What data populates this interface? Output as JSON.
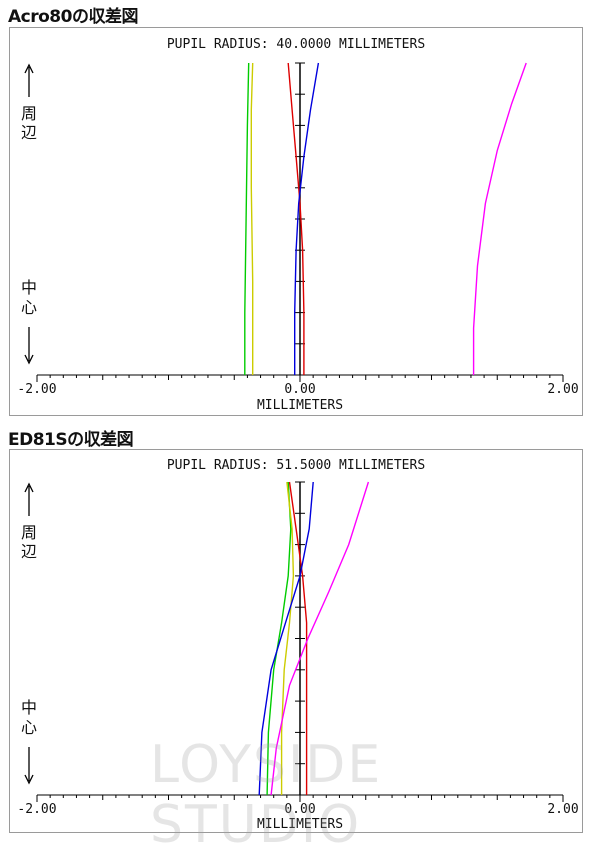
{
  "charts": [
    {
      "section_title": "Acro80の収差図",
      "chart_data": {
        "type": "line",
        "title": "PUPIL RADIUS: 40.0000 MILLIMETERS",
        "xlabel": "MILLIMETERS",
        "xlim": [
          -2.0,
          2.0
        ],
        "ylim": [
          0,
          1
        ],
        "x_tick_labels": [
          "-2.00",
          "0.00",
          "2.00"
        ],
        "y_label_top": "周辺",
        "y_label_bottom": "中心",
        "grid": false,
        "series": [
          {
            "color": "#00cc00",
            "points": [
              [
                -0.42,
                0
              ],
              [
                -0.42,
                0.2
              ],
              [
                -0.41,
                0.5
              ],
              [
                -0.4,
                0.8
              ],
              [
                -0.39,
                1
              ]
            ]
          },
          {
            "color": "#cccc00",
            "points": [
              [
                -0.36,
                0
              ],
              [
                -0.36,
                0.3
              ],
              [
                -0.37,
                0.6
              ],
              [
                -0.37,
                0.85
              ],
              [
                -0.36,
                1
              ]
            ]
          },
          {
            "color": "#dd0000",
            "points": [
              [
                0.03,
                0
              ],
              [
                0.03,
                0.2
              ],
              [
                0.02,
                0.4
              ],
              [
                0.0,
                0.55
              ],
              [
                -0.03,
                0.7
              ],
              [
                -0.06,
                0.85
              ],
              [
                -0.09,
                1
              ]
            ]
          },
          {
            "color": "#0000dd",
            "points": [
              [
                -0.04,
                0
              ],
              [
                -0.04,
                0.2
              ],
              [
                -0.03,
                0.4
              ],
              [
                -0.01,
                0.55
              ],
              [
                0.03,
                0.7
              ],
              [
                0.08,
                0.85
              ],
              [
                0.14,
                1
              ]
            ]
          },
          {
            "color": "#ff00ff",
            "points": [
              [
                1.32,
                0
              ],
              [
                1.32,
                0.15
              ],
              [
                1.35,
                0.35
              ],
              [
                1.41,
                0.55
              ],
              [
                1.5,
                0.72
              ],
              [
                1.61,
                0.87
              ],
              [
                1.72,
                1
              ]
            ]
          }
        ]
      }
    },
    {
      "section_title": "ED81Sの収差図",
      "chart_data": {
        "type": "line",
        "title": "PUPIL RADIUS: 51.5000 MILLIMETERS",
        "xlabel": "MILLIMETERS",
        "xlim": [
          -2.0,
          2.0
        ],
        "ylim": [
          0,
          1
        ],
        "x_tick_labels": [
          "-2.00",
          "0.00",
          "2.00"
        ],
        "y_label_top": "周辺",
        "y_label_bottom": "中心",
        "grid": false,
        "series": [
          {
            "color": "#00cc00",
            "points": [
              [
                -0.25,
                0
              ],
              [
                -0.24,
                0.2
              ],
              [
                -0.2,
                0.4
              ],
              [
                -0.14,
                0.55
              ],
              [
                -0.09,
                0.7
              ],
              [
                -0.07,
                0.85
              ],
              [
                -0.09,
                1
              ]
            ]
          },
          {
            "color": "#cccc00",
            "points": [
              [
                -0.14,
                0
              ],
              [
                -0.14,
                0.2
              ],
              [
                -0.12,
                0.4
              ],
              [
                -0.08,
                0.55
              ],
              [
                -0.05,
                0.7
              ],
              [
                -0.06,
                0.85
              ],
              [
                -0.1,
                1
              ]
            ]
          },
          {
            "color": "#dd0000",
            "points": [
              [
                0.05,
                0
              ],
              [
                0.05,
                0.2
              ],
              [
                0.05,
                0.4
              ],
              [
                0.05,
                0.55
              ],
              [
                0.02,
                0.7
              ],
              [
                -0.03,
                0.85
              ],
              [
                -0.08,
                1
              ]
            ]
          },
          {
            "color": "#0000dd",
            "points": [
              [
                -0.31,
                0
              ],
              [
                -0.29,
                0.2
              ],
              [
                -0.22,
                0.4
              ],
              [
                -0.11,
                0.55
              ],
              [
                0.0,
                0.7
              ],
              [
                0.07,
                0.85
              ],
              [
                0.1,
                1
              ]
            ]
          },
          {
            "color": "#ff00ff",
            "points": [
              [
                -0.22,
                0
              ],
              [
                -0.18,
                0.15
              ],
              [
                -0.08,
                0.35
              ],
              [
                0.06,
                0.5
              ],
              [
                0.22,
                0.65
              ],
              [
                0.37,
                0.8
              ],
              [
                0.52,
                1
              ]
            ]
          }
        ]
      }
    }
  ],
  "watermark": "LOYSIDE STUDIO"
}
